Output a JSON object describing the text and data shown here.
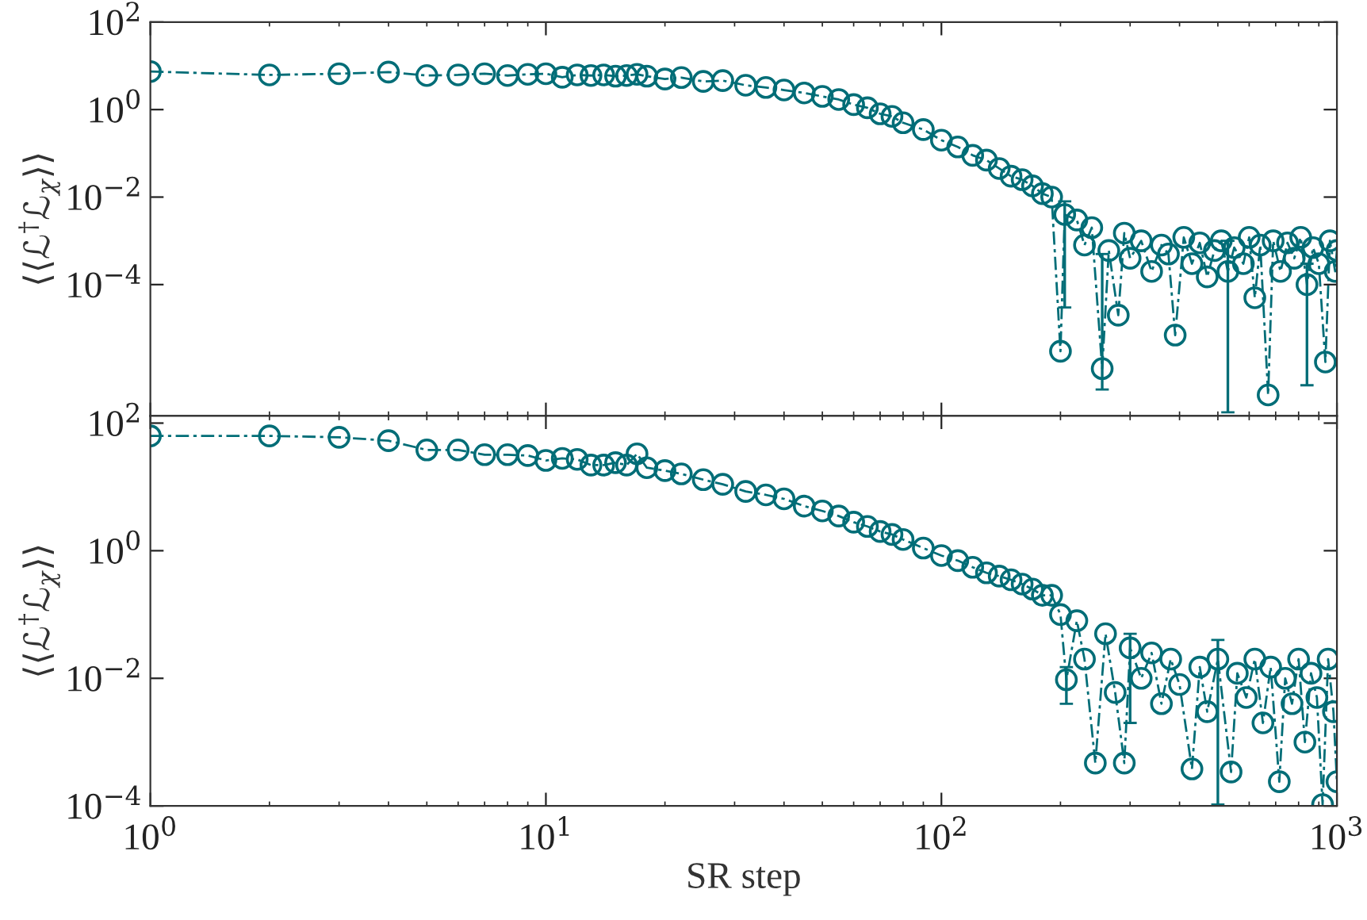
{
  "chart_data": [
    {
      "type": "line",
      "ylabel": "⟨⟨ℒ$^{†}$ℒ$_{χ}$⟩⟩",
      "log": "xy",
      "marker": "circle",
      "line_style": "dashed",
      "tick_labels": "y",
      "grid": false,
      "legend": false,
      "xlim": [
        1,
        1000
      ],
      "ylim": [
        1e-07,
        100
      ],
      "xticks": [
        1,
        10,
        100,
        1000
      ],
      "yticks": [
        {
          "value": 100,
          "label": "10$^{2}$"
        },
        {
          "value": 1,
          "label": "10$^{0}$"
        },
        {
          "value": 0.01,
          "label": "10$^{−2}$"
        },
        {
          "value": 0.0001,
          "label": "10$^{−4}$"
        }
      ],
      "x": [
        1,
        2,
        3,
        4,
        5,
        6,
        7,
        8,
        9,
        10,
        11,
        12,
        13,
        14,
        15,
        16,
        17,
        18,
        20,
        22,
        25,
        28,
        32,
        36,
        40,
        45,
        50,
        55,
        60,
        65,
        70,
        75,
        80,
        90,
        100,
        110,
        120,
        130,
        140,
        150,
        160,
        170,
        180,
        190,
        200,
        205,
        220,
        230,
        240,
        255,
        265,
        280,
        290,
        300,
        320,
        340,
        360,
        375,
        390,
        410,
        430,
        450,
        470,
        490,
        510,
        530,
        550,
        580,
        600,
        620,
        640,
        670,
        690,
        720,
        750,
        780,
        810,
        840,
        870,
        900,
        935,
        960,
        990,
        1000
      ],
      "series": [
        {
          "color": "#006d77",
          "values": [
            7.4,
            6.2,
            6.6,
            7.2,
            6.0,
            6.2,
            6.6,
            6.0,
            6.4,
            6.6,
            5.5,
            6.2,
            6.0,
            6.2,
            5.8,
            6.0,
            6.4,
            5.8,
            5.0,
            5.4,
            4.4,
            4.6,
            3.6,
            3.2,
            2.8,
            2.4,
            2.0,
            1.7,
            1.3,
            1.1,
            0.8,
            0.7,
            0.5,
            0.35,
            0.2,
            0.14,
            0.09,
            0.07,
            0.045,
            0.03,
            0.025,
            0.018,
            0.012,
            0.01,
            3e-06,
            0.004,
            0.003,
            0.0008,
            0.002,
            1.2e-06,
            0.0006,
            2e-05,
            0.0015,
            0.0004,
            0.001,
            0.0002,
            0.0008,
            0.0005,
            7e-06,
            0.0012,
            0.0003,
            0.0009,
            0.00015,
            0.0006,
            0.001,
            0.0002,
            0.0007,
            0.0003,
            0.0012,
            5e-05,
            0.0008,
            3e-07,
            0.001,
            0.0002,
            0.0009,
            0.0004,
            0.0012,
            0.0001,
            0.0007,
            0.0003,
            1.7e-06,
            0.001,
            0.0002,
            0.0006
          ],
          "errors": [
            null,
            null,
            null,
            null,
            null,
            null,
            null,
            null,
            null,
            null,
            null,
            null,
            null,
            null,
            null,
            null,
            null,
            null,
            null,
            null,
            null,
            null,
            null,
            null,
            null,
            null,
            null,
            null,
            null,
            null,
            null,
            null,
            null,
            null,
            null,
            null,
            null,
            null,
            null,
            null,
            null,
            null,
            null,
            null,
            null,
            [
              3e-05,
              0.008
            ],
            null,
            null,
            null,
            [
              4e-07,
              0.0005
            ],
            null,
            null,
            null,
            null,
            null,
            null,
            null,
            null,
            null,
            null,
            null,
            null,
            null,
            null,
            null,
            [
              1.2e-07,
              0.001
            ],
            null,
            null,
            null,
            null,
            null,
            null,
            null,
            null,
            null,
            null,
            null,
            [
              5e-07,
              0.0003
            ],
            null,
            null,
            null,
            null,
            null,
            null
          ]
        }
      ]
    },
    {
      "type": "line",
      "ylabel": "⟨⟨ℒ$^{†}$ℒ$_{χ}$⟩⟩",
      "xlabel": "SR step",
      "log": "xy",
      "marker": "circle",
      "line_style": "dashed",
      "grid": false,
      "legend": false,
      "xlim": [
        1,
        1000
      ],
      "ylim": [
        0.0001,
        130
      ],
      "xticks": [
        {
          "value": 1,
          "label": "10$^{0}$"
        },
        {
          "value": 10,
          "label": "10$^{1}$"
        },
        {
          "value": 100,
          "label": "10$^{2}$"
        },
        {
          "value": 1000,
          "label": "10$^{3}$"
        }
      ],
      "yticks": [
        {
          "value": 100,
          "label": "10$^{2}$"
        },
        {
          "value": 1,
          "label": "10$^{0}$"
        },
        {
          "value": 0.01,
          "label": "10$^{−2}$"
        },
        {
          "value": 0.0001,
          "label": "10$^{−4}$"
        }
      ],
      "x": [
        1,
        2,
        3,
        4,
        5,
        6,
        7,
        8,
        9,
        10,
        11,
        12,
        13,
        14,
        15,
        16,
        17,
        18,
        20,
        22,
        25,
        28,
        32,
        36,
        40,
        45,
        50,
        55,
        60,
        65,
        70,
        75,
        80,
        90,
        100,
        110,
        120,
        130,
        140,
        150,
        160,
        170,
        180,
        190,
        200,
        207,
        220,
        230,
        245,
        260,
        275,
        290,
        300,
        320,
        340,
        360,
        380,
        400,
        430,
        450,
        470,
        500,
        540,
        560,
        590,
        620,
        650,
        680,
        715,
        740,
        770,
        800,
        830,
        860,
        890,
        920,
        950,
        980,
        1000
      ],
      "series": [
        {
          "color": "#006d77",
          "values": [
            63,
            63,
            60,
            53,
            38,
            38,
            32,
            32,
            31,
            26,
            28,
            27,
            22,
            22,
            24,
            22,
            33,
            20,
            18,
            16,
            13,
            11,
            8.5,
            7.5,
            6.5,
            5,
            4.2,
            3.5,
            2.8,
            2.4,
            2,
            1.8,
            1.5,
            1.1,
            0.84,
            0.7,
            0.55,
            0.45,
            0.4,
            0.35,
            0.3,
            0.25,
            0.2,
            0.2,
            0.1,
            0.0095,
            0.08,
            0.02,
            0.00047,
            0.05,
            0.006,
            0.00047,
            0.03,
            0.01,
            0.025,
            0.004,
            0.02,
            0.008,
            0.00038,
            0.015,
            0.003,
            0.02,
            0.00034,
            0.012,
            0.005,
            0.02,
            0.002,
            0.015,
            0.00024,
            0.01,
            0.004,
            0.02,
            0.001,
            0.012,
            0.005,
            0.000105,
            0.02,
            0.003,
            0.00024
          ],
          "errors": [
            null,
            null,
            null,
            null,
            null,
            null,
            null,
            null,
            null,
            null,
            null,
            null,
            null,
            null,
            null,
            null,
            null,
            null,
            null,
            null,
            null,
            null,
            null,
            null,
            null,
            null,
            null,
            null,
            null,
            null,
            null,
            null,
            null,
            null,
            null,
            null,
            null,
            null,
            null,
            null,
            null,
            null,
            null,
            null,
            null,
            [
              0.004,
              0.015
            ],
            null,
            null,
            null,
            null,
            null,
            null,
            [
              0.002,
              0.05
            ],
            null,
            null,
            null,
            null,
            null,
            null,
            null,
            null,
            [
              0.000105,
              0.04
            ],
            null,
            null,
            null,
            null,
            null,
            null,
            null,
            null,
            null,
            null,
            null,
            null,
            null,
            null,
            null,
            null,
            null
          ]
        }
      ]
    }
  ]
}
